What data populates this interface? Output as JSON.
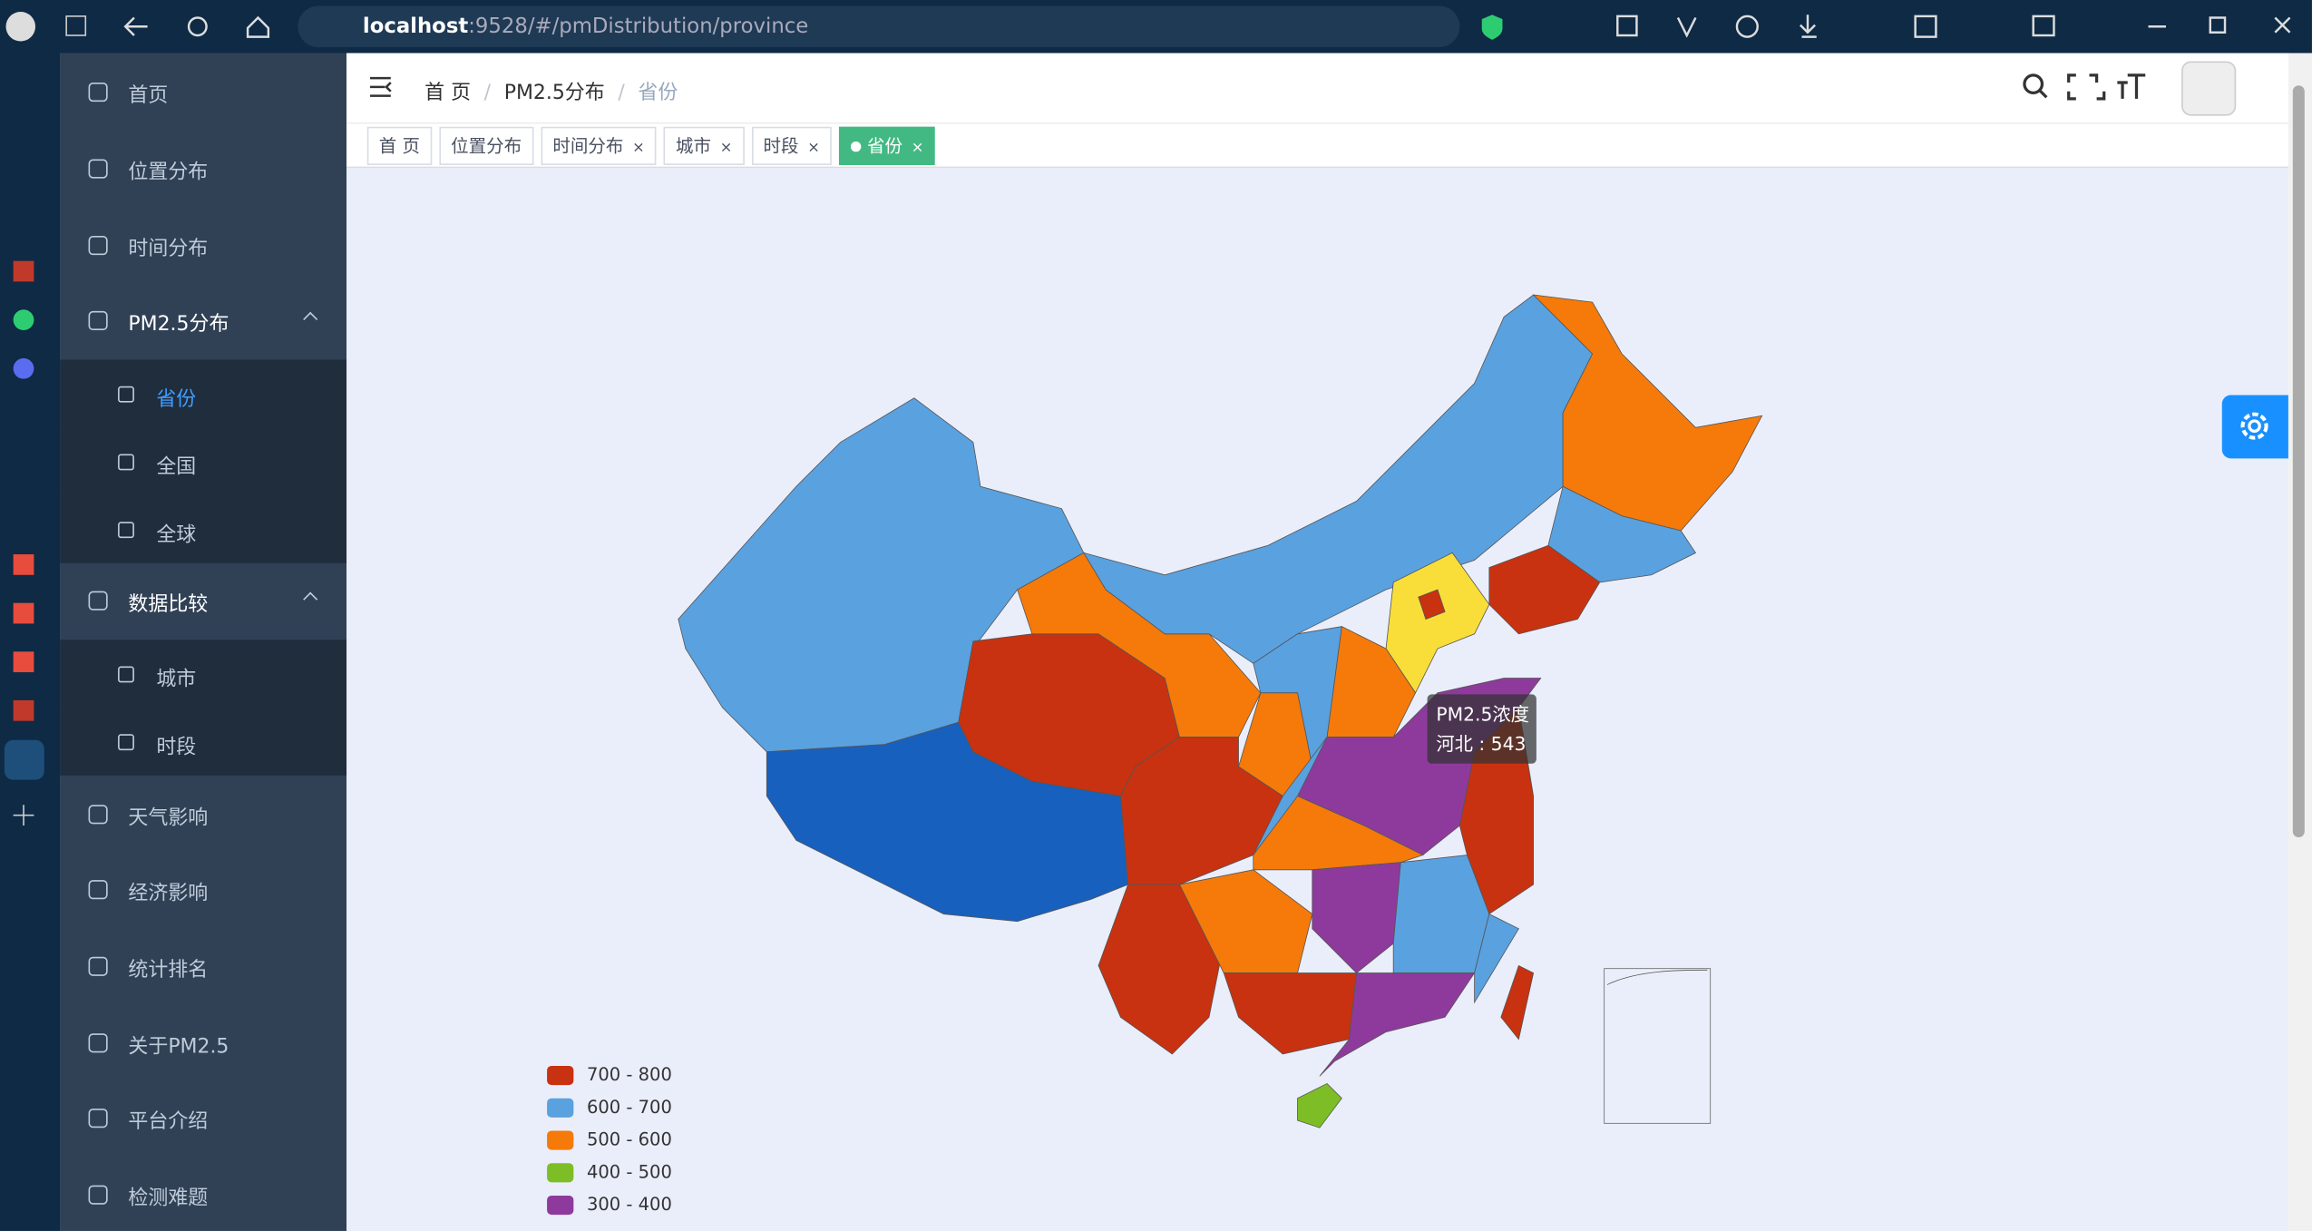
{
  "browser": {
    "url_host": "localhost",
    "url_path": ":9528/#/pmDistribution/province"
  },
  "sidebar": {
    "items": [
      {
        "label": "首页"
      },
      {
        "label": "位置分布"
      },
      {
        "label": "时间分布"
      },
      {
        "label": "PM2.5分布",
        "children": [
          "省份",
          "全国",
          "全球"
        ]
      },
      {
        "label": "数据比较",
        "children": [
          "城市",
          "时段"
        ]
      },
      {
        "label": "天气影响"
      },
      {
        "label": "经济影响"
      },
      {
        "label": "统计排名"
      },
      {
        "label": "关于PM2.5"
      },
      {
        "label": "平台介绍"
      },
      {
        "label": "检测难题"
      }
    ]
  },
  "breadcrumb": {
    "items": [
      "首 页",
      "PM2.5分布",
      "省份"
    ],
    "separator": "/"
  },
  "tabs": {
    "items": [
      "首 页",
      "位置分布",
      "时间分布",
      "城市",
      "时段",
      "省份"
    ],
    "close": "×"
  },
  "map": {
    "tooltip": {
      "title": "PM2.5浓度",
      "text": "河北 : 543"
    },
    "legend": [
      {
        "label": "700 - 800",
        "color": "#c83210"
      },
      {
        "label": "600 - 700",
        "color": "#5aa1e0"
      },
      {
        "label": "500 - 600",
        "color": "#f57a0a"
      },
      {
        "label": "400 - 500",
        "color": "#7dbe26"
      },
      {
        "label": "300 - 400",
        "color": "#8e3a9c"
      }
    ]
  }
}
